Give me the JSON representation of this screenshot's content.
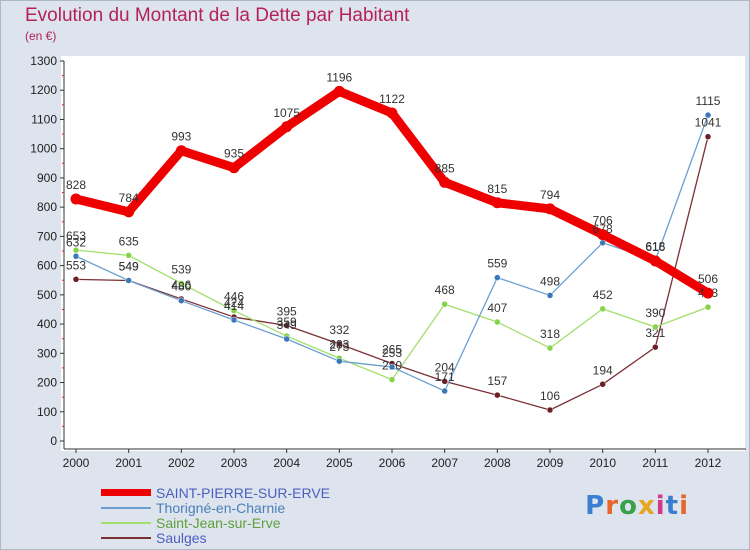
{
  "chart_data": {
    "type": "line",
    "title": "Evolution du Montant de la Dette par Habitant",
    "subtitle": "(en €)",
    "xlabel": "",
    "ylabel": "",
    "categories": [
      "2000",
      "2001",
      "2002",
      "2003",
      "2004",
      "2005",
      "2006",
      "2007",
      "2008",
      "2009",
      "2010",
      "2011",
      "2012"
    ],
    "ylim": [
      0,
      1300
    ],
    "yticks": [
      0,
      100,
      200,
      300,
      400,
      500,
      600,
      700,
      800,
      900,
      1000,
      1100,
      1200,
      1300
    ],
    "grid": false,
    "legend_position": "bottom-left",
    "series": [
      {
        "name": "SAINT-PIERRE-SUR-ERVE",
        "color": "#ee0000",
        "marker": "#ee0000",
        "width": 9,
        "values": [
          828,
          784,
          993,
          935,
          1075,
          1196,
          1122,
          885,
          815,
          794,
          706,
          616,
          506
        ]
      },
      {
        "name": "Thorigné-en-Charnie",
        "color": "#6b9fcf",
        "marker": "#3a78b9",
        "width": 1.3,
        "values": [
          632,
          549,
          480,
          414,
          349,
          273,
          253,
          171,
          559,
          498,
          678,
          618,
          1115
        ]
      },
      {
        "name": "Saint-Jean-sur-Erve",
        "color": "#a2df6d",
        "marker": "#84d34a",
        "width": 1.3,
        "values": [
          653,
          635,
          539,
          446,
          359,
          283,
          210,
          468,
          407,
          318,
          452,
          390,
          458
        ]
      },
      {
        "name": "Saulges",
        "color": "#7a2f35",
        "marker": "#6b1f25",
        "width": 1.3,
        "values": [
          553,
          549,
          486,
          424,
          395,
          332,
          265,
          204,
          157,
          106,
          194,
          321,
          1041
        ]
      }
    ]
  },
  "logo": {
    "text": "Proxiti"
  }
}
